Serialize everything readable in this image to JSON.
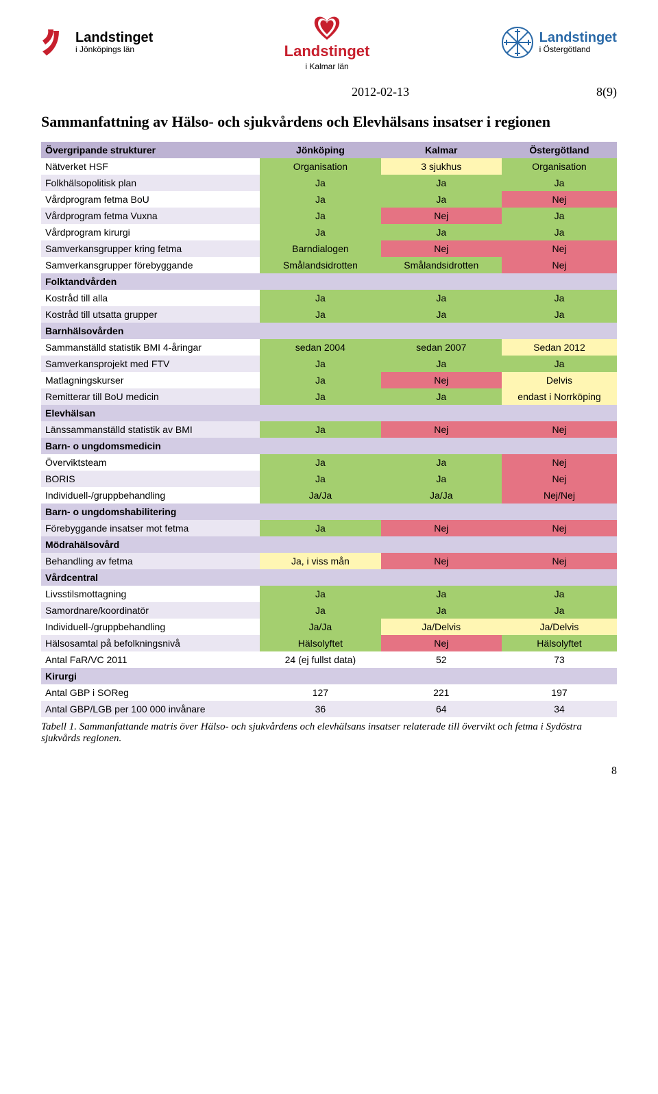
{
  "meta": {
    "date": "2012-02-13",
    "pageref": "8(9)",
    "pagenum": "8",
    "title": "Sammanfattning av Hälso- och sjukvårdens och Elevhälsans insatser i regionen",
    "footnote": "Tabell 1. Sammanfattande matris över Hälso- och sjukvårdens och elevhälsans insatser relaterade till övervikt och fetma i Sydöstra sjukvårds regionen."
  },
  "logos": {
    "left_top": "Landstinget",
    "left_bottom": "i Jönköpings län",
    "center_top": "Landstinget",
    "center_bottom": "i Kalmar län",
    "right_top": "Landstinget",
    "right_bottom": "i Östergötland"
  },
  "colors": {
    "header_bg": "#bdb3d3",
    "section_bg": "#d3cce4",
    "alt_row": "#eae6f2",
    "green": "#a4cf6f",
    "red": "#e57383",
    "yellow": "#fff6b3",
    "brand_red": "#c71f2d",
    "brand_blue": "#2b6aa8",
    "text": "#000000"
  },
  "table": {
    "col_widths": [
      "38%",
      "21%",
      "21%",
      "20%"
    ],
    "header": {
      "label": "Övergripande strukturer",
      "cols": [
        "Jönköping",
        "Kalmar",
        "Östergötland"
      ]
    },
    "rows": [
      {
        "type": "data",
        "alt": false,
        "label": "Nätverket HSF",
        "cells": [
          {
            "v": "Organisation",
            "c": "green"
          },
          {
            "v": "3 sjukhus",
            "c": "yellow"
          },
          {
            "v": "Organisation",
            "c": "green"
          }
        ]
      },
      {
        "type": "data",
        "alt": true,
        "label": "Folkhälsopolitisk plan",
        "cells": [
          {
            "v": "Ja",
            "c": "green"
          },
          {
            "v": "Ja",
            "c": "green"
          },
          {
            "v": "Ja",
            "c": "green"
          }
        ]
      },
      {
        "type": "data",
        "alt": false,
        "label": "Vårdprogram fetma BoU",
        "cells": [
          {
            "v": "Ja",
            "c": "green"
          },
          {
            "v": "Ja",
            "c": "green"
          },
          {
            "v": "Nej",
            "c": "red"
          }
        ]
      },
      {
        "type": "data",
        "alt": true,
        "label": "Vårdprogram fetma Vuxna",
        "cells": [
          {
            "v": "Ja",
            "c": "green"
          },
          {
            "v": "Nej",
            "c": "red"
          },
          {
            "v": "Ja",
            "c": "green"
          }
        ]
      },
      {
        "type": "data",
        "alt": false,
        "label": "Vårdprogram kirurgi",
        "cells": [
          {
            "v": "Ja",
            "c": "green"
          },
          {
            "v": "Ja",
            "c": "green"
          },
          {
            "v": "Ja",
            "c": "green"
          }
        ]
      },
      {
        "type": "data",
        "alt": true,
        "label": "Samverkansgrupper kring fetma",
        "cells": [
          {
            "v": "Barndialogen",
            "c": "green"
          },
          {
            "v": "Nej",
            "c": "red"
          },
          {
            "v": "Nej",
            "c": "red"
          }
        ]
      },
      {
        "type": "data",
        "alt": false,
        "label": "Samverkansgrupper förebyggande",
        "cells": [
          {
            "v": "Smålandsidrotten",
            "c": "green"
          },
          {
            "v": "Smålandsidrotten",
            "c": "green"
          },
          {
            "v": "Nej",
            "c": "red"
          }
        ]
      },
      {
        "type": "section",
        "label": "Folktandvården"
      },
      {
        "type": "data",
        "alt": false,
        "label": "Kostråd till alla",
        "cells": [
          {
            "v": "Ja",
            "c": "green"
          },
          {
            "v": "Ja",
            "c": "green"
          },
          {
            "v": "Ja",
            "c": "green"
          }
        ]
      },
      {
        "type": "data",
        "alt": true,
        "label": "Kostråd till utsatta grupper",
        "cells": [
          {
            "v": "Ja",
            "c": "green"
          },
          {
            "v": "Ja",
            "c": "green"
          },
          {
            "v": "Ja",
            "c": "green"
          }
        ]
      },
      {
        "type": "section",
        "label": "Barnhälsovården"
      },
      {
        "type": "data",
        "alt": false,
        "label": "Sammanställd statistik BMI 4-åringar",
        "cells": [
          {
            "v": "sedan 2004",
            "c": "green"
          },
          {
            "v": "sedan 2007",
            "c": "green"
          },
          {
            "v": "Sedan 2012",
            "c": "yellow"
          }
        ]
      },
      {
        "type": "data",
        "alt": true,
        "label": "Samverkansprojekt med FTV",
        "cells": [
          {
            "v": "Ja",
            "c": "green"
          },
          {
            "v": "Ja",
            "c": "green"
          },
          {
            "v": "Ja",
            "c": "green"
          }
        ]
      },
      {
        "type": "data",
        "alt": false,
        "label": "Matlagningskurser",
        "cells": [
          {
            "v": "Ja",
            "c": "green"
          },
          {
            "v": "Nej",
            "c": "red"
          },
          {
            "v": "Delvis",
            "c": "yellow"
          }
        ]
      },
      {
        "type": "data",
        "alt": true,
        "label": "Remitterar till BoU medicin",
        "cells": [
          {
            "v": "Ja",
            "c": "green"
          },
          {
            "v": "Ja",
            "c": "green"
          },
          {
            "v": "endast i Norrköping",
            "c": "yellow"
          }
        ]
      },
      {
        "type": "section",
        "label": "Elevhälsan"
      },
      {
        "type": "data",
        "alt": true,
        "label": "Länssammanställd statistik av BMI",
        "cells": [
          {
            "v": "Ja",
            "c": "green"
          },
          {
            "v": "Nej",
            "c": "red"
          },
          {
            "v": "Nej",
            "c": "red"
          }
        ]
      },
      {
        "type": "section",
        "label": "Barn- o ungdomsmedicin"
      },
      {
        "type": "data",
        "alt": false,
        "label": "Överviktsteam",
        "cells": [
          {
            "v": "Ja",
            "c": "green"
          },
          {
            "v": "Ja",
            "c": "green"
          },
          {
            "v": "Nej",
            "c": "red"
          }
        ]
      },
      {
        "type": "data",
        "alt": true,
        "label": "BORIS",
        "cells": [
          {
            "v": "Ja",
            "c": "green"
          },
          {
            "v": "Ja",
            "c": "green"
          },
          {
            "v": "Nej",
            "c": "red"
          }
        ]
      },
      {
        "type": "data",
        "alt": false,
        "label": "Individuell-/gruppbehandling",
        "cells": [
          {
            "v": "Ja/Ja",
            "c": "green"
          },
          {
            "v": "Ja/Ja",
            "c": "green"
          },
          {
            "v": "Nej/Nej",
            "c": "red"
          }
        ]
      },
      {
        "type": "section",
        "label": "Barn- o ungdomshabilitering"
      },
      {
        "type": "data",
        "alt": true,
        "label": "Förebyggande insatser mot fetma",
        "cells": [
          {
            "v": "Ja",
            "c": "green"
          },
          {
            "v": "Nej",
            "c": "red"
          },
          {
            "v": "Nej",
            "c": "red"
          }
        ]
      },
      {
        "type": "section",
        "label": "Mödrahälsovård"
      },
      {
        "type": "data",
        "alt": true,
        "label": "Behandling av fetma",
        "cells": [
          {
            "v": "Ja, i viss mån",
            "c": "yellow"
          },
          {
            "v": "Nej",
            "c": "red"
          },
          {
            "v": "Nej",
            "c": "red"
          }
        ]
      },
      {
        "type": "section",
        "label": "Vårdcentral"
      },
      {
        "type": "data",
        "alt": false,
        "label": "Livsstilsmottagning",
        "cells": [
          {
            "v": "Ja",
            "c": "green"
          },
          {
            "v": "Ja",
            "c": "green"
          },
          {
            "v": "Ja",
            "c": "green"
          }
        ]
      },
      {
        "type": "data",
        "alt": true,
        "label": "Samordnare/koordinatör",
        "cells": [
          {
            "v": "Ja",
            "c": "green"
          },
          {
            "v": "Ja",
            "c": "green"
          },
          {
            "v": "Ja",
            "c": "green"
          }
        ]
      },
      {
        "type": "data",
        "alt": false,
        "label": "Individuell-/gruppbehandling",
        "cells": [
          {
            "v": "Ja/Ja",
            "c": "green"
          },
          {
            "v": "Ja/Delvis",
            "c": "yellow"
          },
          {
            "v": "Ja/Delvis",
            "c": "yellow"
          }
        ]
      },
      {
        "type": "data",
        "alt": true,
        "label": "Hälsosamtal på befolkningsnivå",
        "cells": [
          {
            "v": "Hälsolyftet",
            "c": "green"
          },
          {
            "v": "Nej",
            "c": "red"
          },
          {
            "v": "Hälsolyftet",
            "c": "green"
          }
        ]
      },
      {
        "type": "plain",
        "alt": false,
        "label": "Antal FaR/VC 2011",
        "cells": [
          {
            "v": "24 (ej fullst data)"
          },
          {
            "v": "52"
          },
          {
            "v": "73"
          }
        ]
      },
      {
        "type": "section",
        "label": "Kirurgi"
      },
      {
        "type": "plain",
        "alt": false,
        "label": "Antal GBP i SOReg",
        "cells": [
          {
            "v": "127"
          },
          {
            "v": "221"
          },
          {
            "v": "197"
          }
        ]
      },
      {
        "type": "plain",
        "alt": true,
        "label": "Antal GBP/LGB per 100 000 invånare",
        "cells": [
          {
            "v": "36"
          },
          {
            "v": "64"
          },
          {
            "v": "34"
          }
        ]
      }
    ]
  }
}
